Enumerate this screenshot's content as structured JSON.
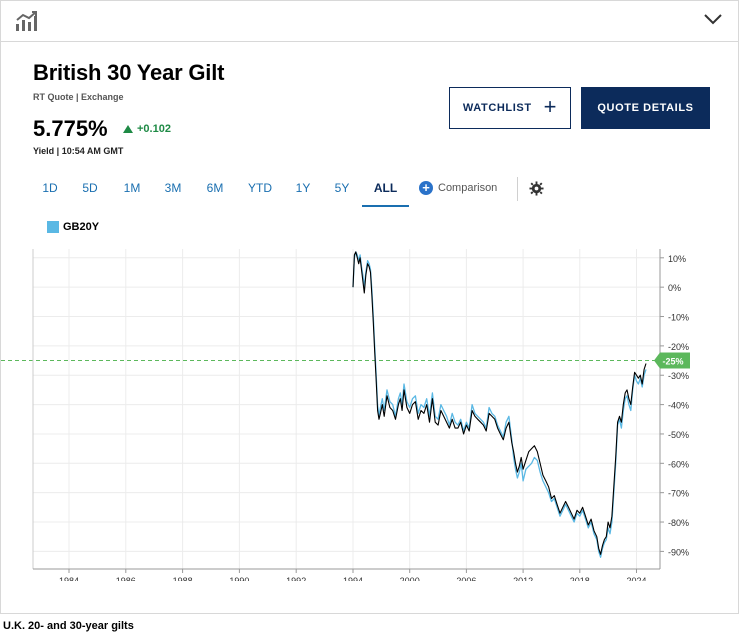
{
  "header": {
    "title": "British 30 Year Gilt",
    "subtitle": "RT Quote | Exchange",
    "price": "5.775%",
    "change": "+0.102",
    "yield_time": "Yield | 10:54 AM GMT"
  },
  "buttons": {
    "watchlist": "WATCHLIST",
    "quote_details": "QUOTE DETAILS"
  },
  "tabs": [
    "1D",
    "5D",
    "1M",
    "3M",
    "6M",
    "YTD",
    "1Y",
    "5Y",
    "ALL"
  ],
  "active_tab": "ALL",
  "comparison_label": "Comparison",
  "icons": {
    "top_left": "chart-icon",
    "top_right": "chevron-down-icon",
    "settings": "gear-icon",
    "add": "plus-circle-icon"
  },
  "colors": {
    "accent": "#0c2b5b",
    "link": "#1a6fb0",
    "positive": "#1e8a45",
    "series_light": "#5ab8e4",
    "series_dark": "#000000",
    "marker": "#5cb85c"
  },
  "legend_label": "GB20Y",
  "current_marker": "-25%",
  "caption": "U.K. 20- and 30-year gilts",
  "chart_data": {
    "type": "line",
    "x_ticks": [
      "1984",
      "1986",
      "1988",
      "1990",
      "1992",
      "1994",
      "2000",
      "2006",
      "2012",
      "2018",
      "2024"
    ],
    "y_ticks": [
      "10%",
      "0%",
      "-10%",
      "-20%",
      "-30%",
      "-40%",
      "-50%",
      "-60%",
      "-70%",
      "-80%",
      "-90%"
    ],
    "ylim": [
      -96,
      13
    ],
    "reference_line": -25,
    "series": [
      {
        "name": "GB20Y",
        "color": "#5ab8e4",
        "x": [
          1994.0,
          1994.15,
          1994.3,
          1994.45,
          1994.6,
          1994.75,
          1994.9,
          1995.05,
          1995.2,
          1995.35,
          1995.55,
          1995.7,
          1995.85,
          1996.0,
          1996.15,
          1996.3,
          1996.45,
          1996.6,
          1996.75,
          1996.9,
          1997.1,
          1997.3,
          1997.6,
          1997.9,
          1998.2,
          1998.5,
          1998.8,
          1999.0,
          1999.2,
          1999.4,
          1999.7,
          2000.0,
          2000.3,
          2000.6,
          2000.9,
          2001.2,
          2001.5,
          2001.8,
          2002.1,
          2002.4,
          2002.7,
          2003.0,
          2003.3,
          2003.6,
          2003.9,
          2004.2,
          2004.5,
          2004.8,
          2005.1,
          2005.4,
          2005.7,
          2006.0,
          2006.3,
          2006.6,
          2006.9,
          2007.2,
          2007.5,
          2007.8,
          2008.1,
          2008.4,
          2008.7,
          2009.0,
          2009.3,
          2009.6,
          2009.9,
          2010.2,
          2010.5,
          2010.8,
          2011.0,
          2011.2,
          2011.4,
          2011.6,
          2011.8,
          2012.0,
          2012.3,
          2012.6,
          2012.9,
          2013.2,
          2013.5,
          2013.8,
          2014.1,
          2014.4,
          2014.7,
          2015.0,
          2015.3,
          2015.6,
          2015.9,
          2016.2,
          2016.5,
          2016.8,
          2017.1,
          2017.4,
          2017.7,
          2018.0,
          2018.3,
          2018.6,
          2018.9,
          2019.2,
          2019.5,
          2019.8,
          2020.0,
          2020.2,
          2020.4,
          2020.6,
          2020.8,
          2021.0,
          2021.2,
          2021.4,
          2021.6,
          2021.8,
          2022.0,
          2022.2,
          2022.4,
          2022.6,
          2022.8,
          2023.0,
          2023.2,
          2023.4,
          2023.6,
          2023.8,
          2024.0,
          2024.2,
          2024.4,
          2024.6,
          2024.8,
          2025.0
        ],
        "y": [
          0,
          10,
          12,
          11,
          9,
          11,
          7,
          4,
          0,
          5,
          9,
          8,
          6,
          -1,
          -10,
          -20,
          -30,
          -40,
          -44,
          -41,
          -38,
          -42,
          -35,
          -39,
          -40,
          -44,
          -38,
          -36,
          -40,
          -33,
          -39,
          -41,
          -38,
          -37,
          -43,
          -40,
          -41,
          -38,
          -44,
          -36,
          -44,
          -45,
          -40,
          -42,
          -44,
          -47,
          -43,
          -46,
          -47,
          -45,
          -49,
          -46,
          -48,
          -40,
          -43,
          -44,
          -45,
          -46,
          -48,
          -41,
          -43,
          -44,
          -47,
          -49,
          -51,
          -46,
          -44,
          -52,
          -58,
          -62,
          -65,
          -63,
          -60,
          -66,
          -62,
          -61,
          -60,
          -58,
          -59,
          -63,
          -66,
          -68,
          -70,
          -73,
          -72,
          -75,
          -78,
          -76,
          -74,
          -76,
          -78,
          -80,
          -77,
          -78,
          -76,
          -79,
          -82,
          -80,
          -84,
          -86,
          -90,
          -92,
          -89,
          -87,
          -86,
          -82,
          -84,
          -80,
          -70,
          -60,
          -47,
          -45,
          -48,
          -42,
          -38,
          -37,
          -40,
          -42,
          -35,
          -30,
          -32,
          -33,
          -31,
          -34,
          -30,
          -28
        ],
        "xlabel": "",
        "ylabel": ""
      },
      {
        "name": "",
        "color": "#000000",
        "x": [
          1994.0,
          1994.15,
          1994.3,
          1994.45,
          1994.6,
          1994.75,
          1994.9,
          1995.05,
          1995.2,
          1995.35,
          1995.55,
          1995.7,
          1995.85,
          1996.0,
          1996.15,
          1996.3,
          1996.45,
          1996.6,
          1996.75,
          1996.9,
          1997.1,
          1997.3,
          1997.6,
          1997.9,
          1998.2,
          1998.5,
          1998.8,
          1999.0,
          1999.2,
          1999.4,
          1999.7,
          2000.0,
          2000.3,
          2000.6,
          2000.9,
          2001.2,
          2001.5,
          2001.8,
          2002.1,
          2002.4,
          2002.7,
          2003.0,
          2003.3,
          2003.6,
          2003.9,
          2004.2,
          2004.5,
          2004.8,
          2005.1,
          2005.4,
          2005.7,
          2006.0,
          2006.3,
          2006.6,
          2006.9,
          2007.2,
          2007.5,
          2007.8,
          2008.1,
          2008.4,
          2008.7,
          2009.0,
          2009.3,
          2009.6,
          2009.9,
          2010.2,
          2010.5,
          2010.8,
          2011.0,
          2011.2,
          2011.4,
          2011.6,
          2011.8,
          2012.0,
          2012.3,
          2012.6,
          2012.9,
          2013.2,
          2013.5,
          2013.8,
          2014.1,
          2014.4,
          2014.7,
          2015.0,
          2015.3,
          2015.6,
          2015.9,
          2016.2,
          2016.5,
          2016.8,
          2017.1,
          2017.4,
          2017.7,
          2018.0,
          2018.3,
          2018.6,
          2018.9,
          2019.2,
          2019.5,
          2019.8,
          2020.0,
          2020.2,
          2020.4,
          2020.6,
          2020.8,
          2021.0,
          2021.2,
          2021.4,
          2021.6,
          2021.8,
          2022.0,
          2022.2,
          2022.4,
          2022.6,
          2022.8,
          2023.0,
          2023.2,
          2023.4,
          2023.6,
          2023.8,
          2024.0,
          2024.2,
          2024.4,
          2024.6,
          2024.8,
          2025.0
        ],
        "y": [
          0,
          11,
          12,
          10,
          8,
          10,
          6,
          2,
          -2,
          4,
          8,
          7,
          5,
          -3,
          -12,
          -22,
          -32,
          -42,
          -45,
          -43,
          -40,
          -44,
          -37,
          -41,
          -42,
          -45,
          -40,
          -38,
          -42,
          -35,
          -41,
          -43,
          -40,
          -39,
          -45,
          -42,
          -43,
          -40,
          -46,
          -38,
          -46,
          -47,
          -42,
          -44,
          -46,
          -48,
          -45,
          -48,
          -48,
          -46,
          -50,
          -47,
          -49,
          -42,
          -44,
          -45,
          -46,
          -47,
          -49,
          -43,
          -44,
          -45,
          -48,
          -50,
          -52,
          -48,
          -46,
          -53,
          -56,
          -60,
          -63,
          -61,
          -58,
          -62,
          -59,
          -56,
          -55,
          -54,
          -56,
          -60,
          -64,
          -66,
          -68,
          -72,
          -71,
          -74,
          -77,
          -75,
          -73,
          -75,
          -77,
          -79,
          -76,
          -77,
          -75,
          -78,
          -81,
          -79,
          -83,
          -85,
          -89,
          -91,
          -88,
          -86,
          -85,
          -80,
          -82,
          -78,
          -68,
          -58,
          -46,
          -44,
          -46,
          -40,
          -36,
          -35,
          -38,
          -40,
          -34,
          -29,
          -30,
          -31,
          -30,
          -33,
          -28,
          -26
        ],
        "xlabel": "",
        "ylabel": ""
      }
    ],
    "grid": true,
    "legend_position": "top-left"
  }
}
